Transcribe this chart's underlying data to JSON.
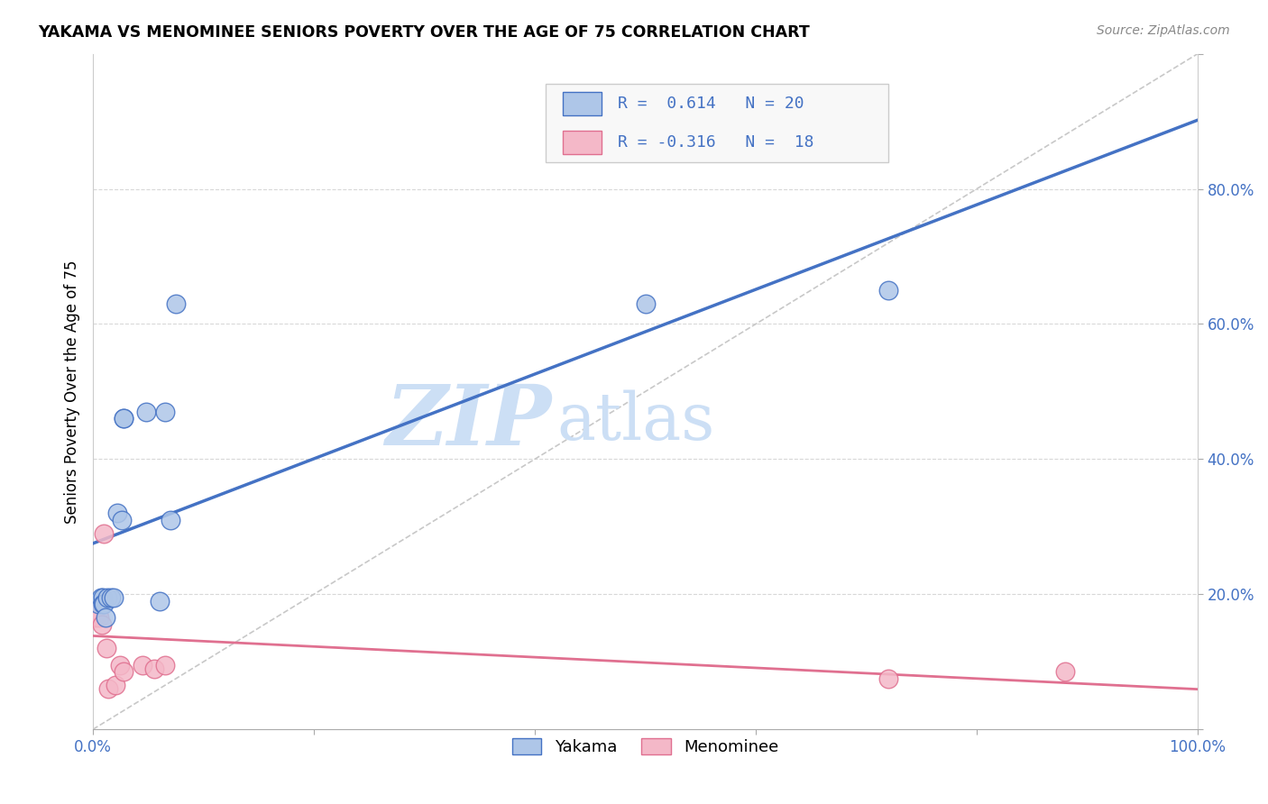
{
  "title": "YAKAMA VS MENOMINEE SENIORS POVERTY OVER THE AGE OF 75 CORRELATION CHART",
  "source": "Source: ZipAtlas.com",
  "ylabel": "Seniors Poverty Over the Age of 75",
  "xlim": [
    0.0,
    1.0
  ],
  "ylim": [
    0.0,
    1.0
  ],
  "xticks": [
    0.0,
    0.2,
    0.4,
    0.6,
    0.8,
    1.0
  ],
  "yticks": [
    0.2,
    0.4,
    0.6,
    0.8
  ],
  "xtick_labels_show": [
    "0.0%",
    "100.0%"
  ],
  "xtick_positions_show": [
    0.0,
    1.0
  ],
  "ytick_labels": [
    "20.0%",
    "40.0%",
    "60.0%",
    "80.0%"
  ],
  "yakama_color": "#aec6e8",
  "menominee_color": "#f4b8c8",
  "yakama_line_color": "#4472c4",
  "menominee_line_color": "#e07090",
  "diagonal_color": "#c8c8c8",
  "R_yakama": 0.614,
  "N_yakama": 20,
  "R_menominee": -0.316,
  "N_menominee": 18,
  "watermark_zip": "ZIP",
  "watermark_atlas": "atlas",
  "watermark_color": "#ccdff5",
  "grid_color": "#d8d8d8",
  "legend_box_color": "#f0f0f0",
  "legend_border_color": "#cccccc",
  "text_color": "#4472c4",
  "source_color": "#888888",
  "yakama_x": [
    0.005,
    0.007,
    0.009,
    0.009,
    0.01,
    0.011,
    0.013,
    0.016,
    0.019,
    0.022,
    0.026,
    0.028,
    0.028,
    0.048,
    0.06,
    0.065,
    0.07,
    0.075,
    0.5,
    0.72
  ],
  "yakama_y": [
    0.185,
    0.195,
    0.195,
    0.185,
    0.185,
    0.165,
    0.195,
    0.195,
    0.195,
    0.32,
    0.31,
    0.46,
    0.46,
    0.47,
    0.19,
    0.47,
    0.31,
    0.63,
    0.63,
    0.65
  ],
  "menominee_x": [
    0.0,
    0.002,
    0.002,
    0.004,
    0.005,
    0.006,
    0.008,
    0.01,
    0.012,
    0.014,
    0.02,
    0.024,
    0.028,
    0.045,
    0.055,
    0.065,
    0.72,
    0.88
  ],
  "menominee_y": [
    0.18,
    0.175,
    0.165,
    0.17,
    0.175,
    0.165,
    0.155,
    0.29,
    0.12,
    0.06,
    0.065,
    0.095,
    0.085,
    0.095,
    0.09,
    0.095,
    0.075,
    0.085
  ]
}
